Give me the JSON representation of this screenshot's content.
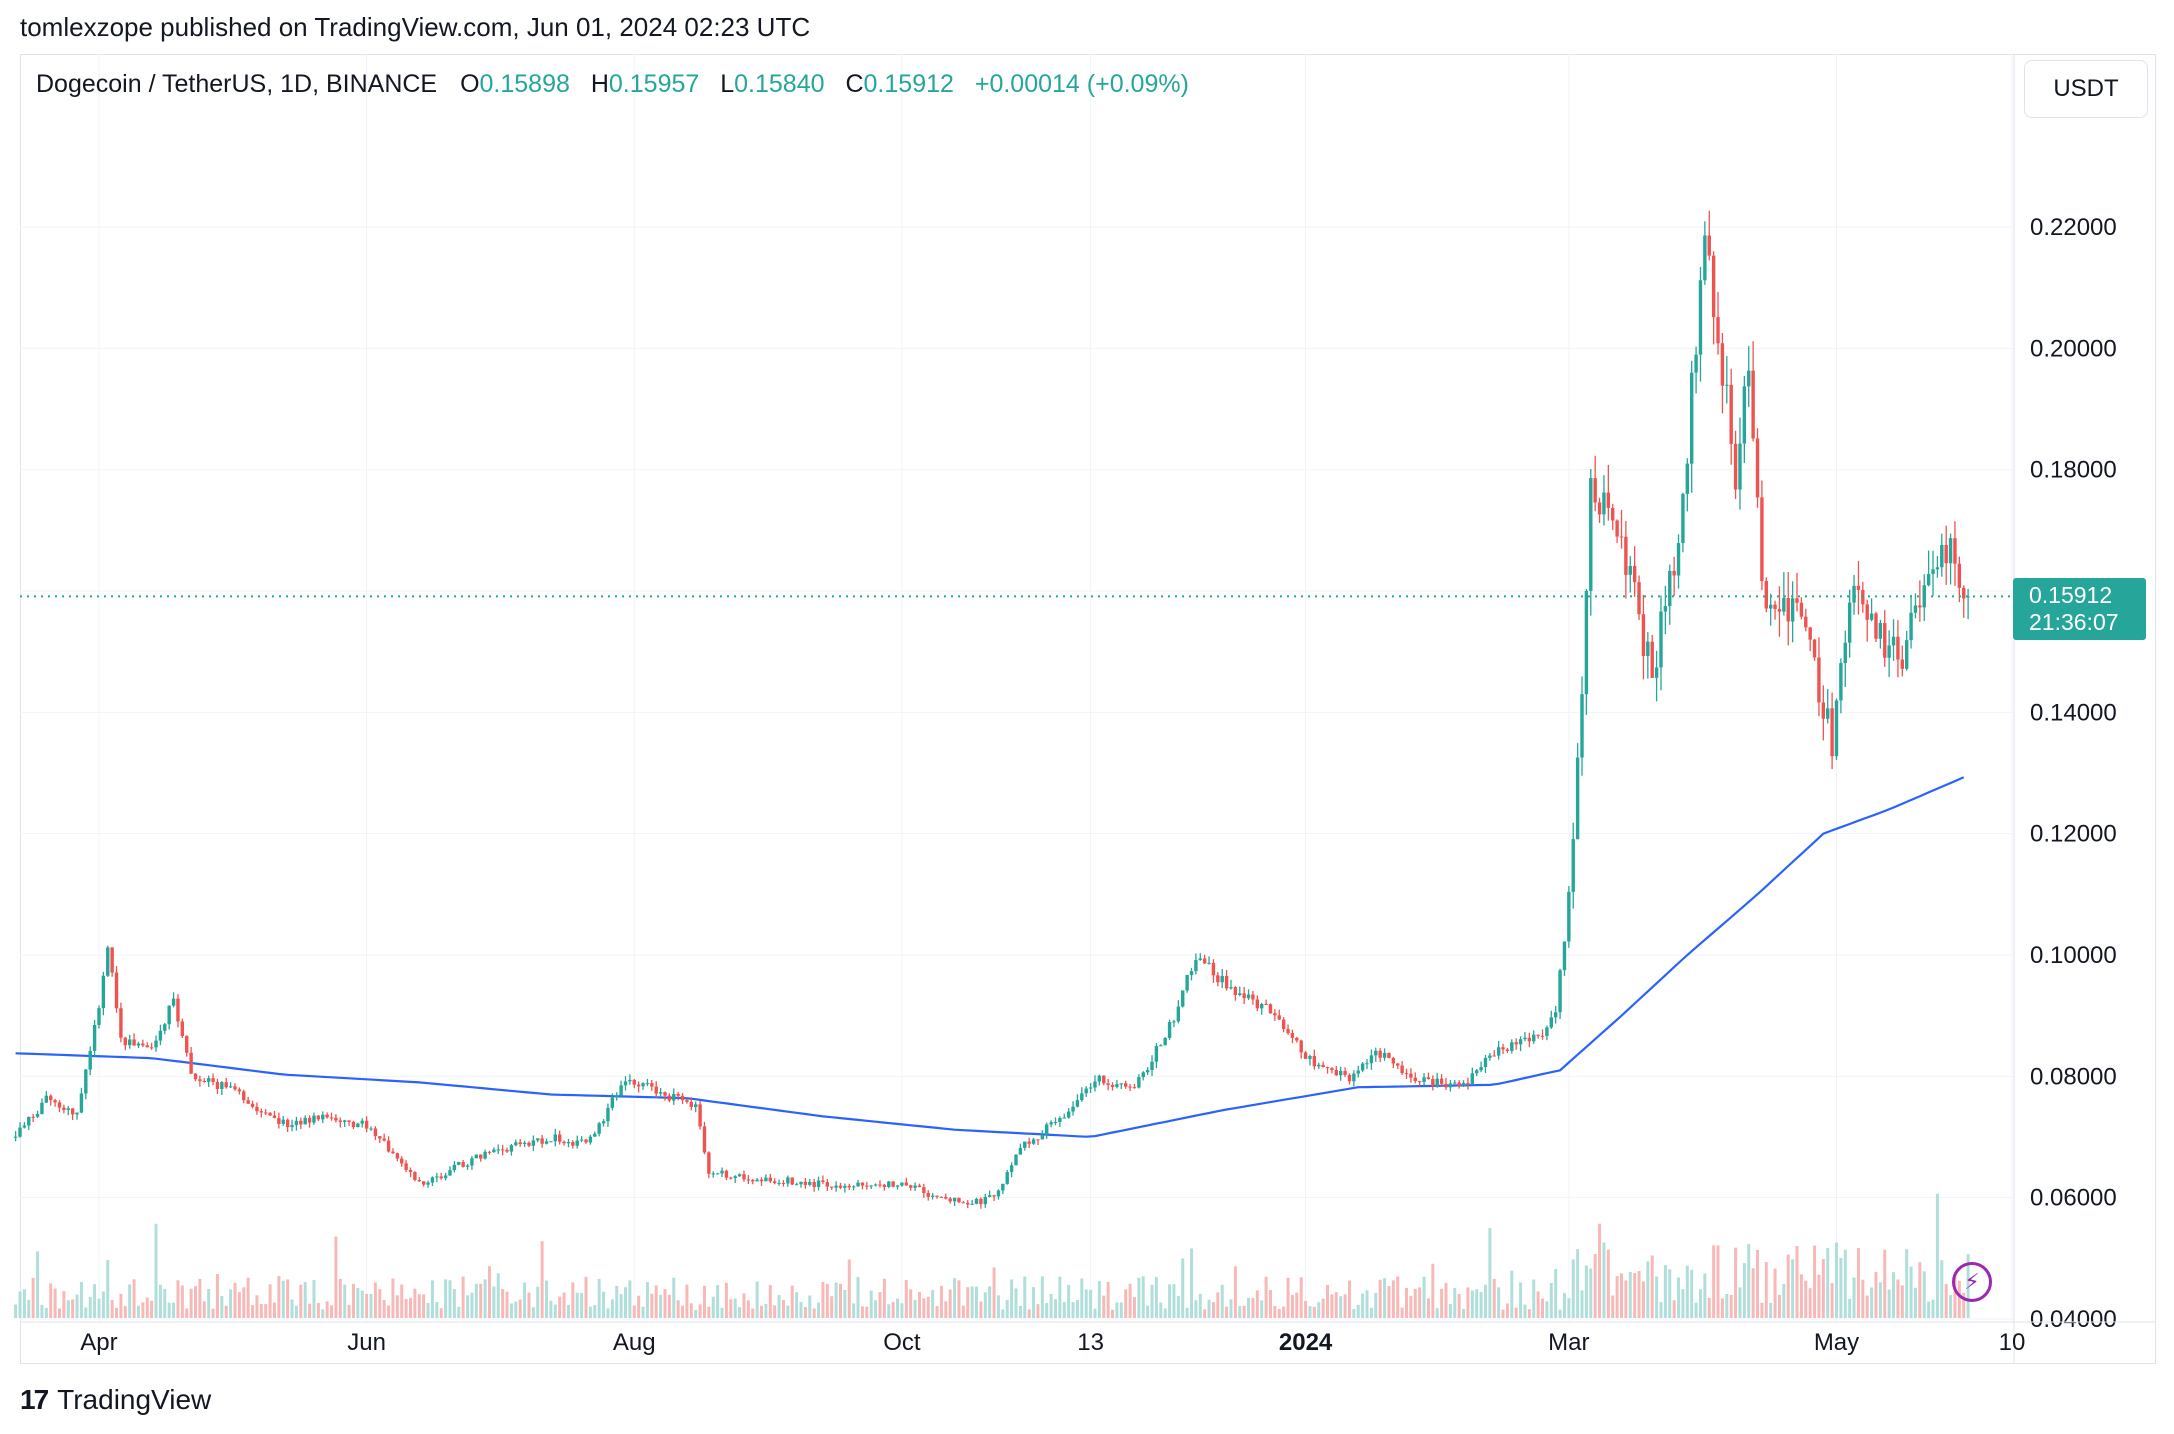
{
  "publisher_line": "tomlexzope published on TradingView.com, Jun 01, 2024 02:23 UTC",
  "legend": {
    "symbol": "Dogecoin / TetherUS, 1D, BINANCE",
    "o_label": "O",
    "o_value": "0.15898",
    "h_label": "H",
    "h_value": "0.15957",
    "l_label": "L",
    "l_value": "0.15840",
    "c_label": "C",
    "c_value": "0.15912",
    "change": "+0.00014 (+0.09%)"
  },
  "currency_button": "USDT",
  "last_price": {
    "price": "0.15912",
    "countdown": "21:36:07"
  },
  "brand": {
    "mark": "17",
    "name": "TradingView"
  },
  "colors": {
    "up": "#26a69a",
    "down": "#ef5350",
    "ma": "#2962ff",
    "badge": "#26a69a",
    "bolt": "#9c27b0"
  },
  "icons": {
    "alert": "lightning-icon",
    "logo": "tradingview-logo-icon"
  },
  "chart_data": {
    "type": "candlestick",
    "y_ticks": [
      "0.04000",
      "0.06000",
      "0.08000",
      "0.10000",
      "0.12000",
      "0.14000",
      "0.16000",
      "0.18000",
      "0.20000",
      "0.22000"
    ],
    "ylim": [
      0.0395,
      0.236
    ],
    "x_ticks": [
      "Apr",
      "Jun",
      "Aug",
      "Oct",
      "13",
      "2024",
      "Mar",
      "May",
      "10"
    ],
    "candles": {
      "2023-03-13": 0.07,
      "2023-03-20": 0.076,
      "2023-03-27": 0.074,
      "2023-04-01": 0.092,
      "2023-04-03": 0.102,
      "2023-04-06": 0.086,
      "2023-04-12": 0.084,
      "2023-04-18": 0.092,
      "2023-04-22": 0.08,
      "2023-05-01": 0.078,
      "2023-05-12": 0.072,
      "2023-05-22": 0.073,
      "2023-06-01": 0.072,
      "2023-06-10": 0.065,
      "2023-06-14": 0.062,
      "2023-06-24": 0.066,
      "2023-07-03": 0.068,
      "2023-07-13": 0.07,
      "2023-07-20": 0.069,
      "2023-07-24": 0.072,
      "2023-07-30": 0.08,
      "2023-08-07": 0.077,
      "2023-08-15": 0.075,
      "2023-08-18": 0.064,
      "2023-09-01": 0.063,
      "2023-09-15": 0.062,
      "2023-10-01": 0.062,
      "2023-10-15": 0.059,
      "2023-10-22": 0.06,
      "2023-10-28": 0.068,
      "2023-11-09": 0.075,
      "2023-11-14": 0.08,
      "2023-11-23": 0.078,
      "2023-12-01": 0.088,
      "2023-12-07": 0.1,
      "2023-12-14": 0.095,
      "2023-12-25": 0.09,
      "2024-01-03": 0.082,
      "2024-01-11": 0.08,
      "2024-01-17": 0.084,
      "2024-01-25": 0.08,
      "2024-02-05": 0.078,
      "2024-02-13": 0.084,
      "2024-02-22": 0.086,
      "2024-02-27": 0.09,
      "2024-03-01": 0.11,
      "2024-03-04": 0.14,
      "2024-03-06": 0.176,
      "2024-03-12": 0.17,
      "2024-03-20": 0.146,
      "2024-03-26": 0.17,
      "2024-03-30": 0.2,
      "2024-04-01": 0.218,
      "2024-04-05": 0.196,
      "2024-04-08": 0.18,
      "2024-04-11": 0.195,
      "2024-04-15": 0.155,
      "2024-04-20": 0.158,
      "2024-04-25": 0.15,
      "2024-04-30": 0.135,
      "2024-05-05": 0.16,
      "2024-05-15": 0.148,
      "2024-05-21": 0.162,
      "2024-05-27": 0.166,
      "2024-05-31": 0.15912
    },
    "moving_average": {
      "2023-03-13": 0.0838,
      "2023-04-13": 0.083,
      "2023-05-13": 0.0803,
      "2023-06-13": 0.079,
      "2023-07-13": 0.077,
      "2023-08-13": 0.0764,
      "2023-09-13": 0.0734,
      "2023-10-13": 0.0712,
      "2023-11-13": 0.07,
      "2023-12-13": 0.0744,
      "2024-01-13": 0.0782,
      "2024-02-13": 0.0786,
      "2024-02-28": 0.081,
      "2024-03-13": 0.09,
      "2024-03-28": 0.1,
      "2024-04-13": 0.11,
      "2024-04-28": 0.12,
      "2024-05-13": 0.124,
      "2024-05-31": 0.1296
    },
    "volume": "shown as bars along the bottom, heaviest in early March and mid April 2024"
  }
}
